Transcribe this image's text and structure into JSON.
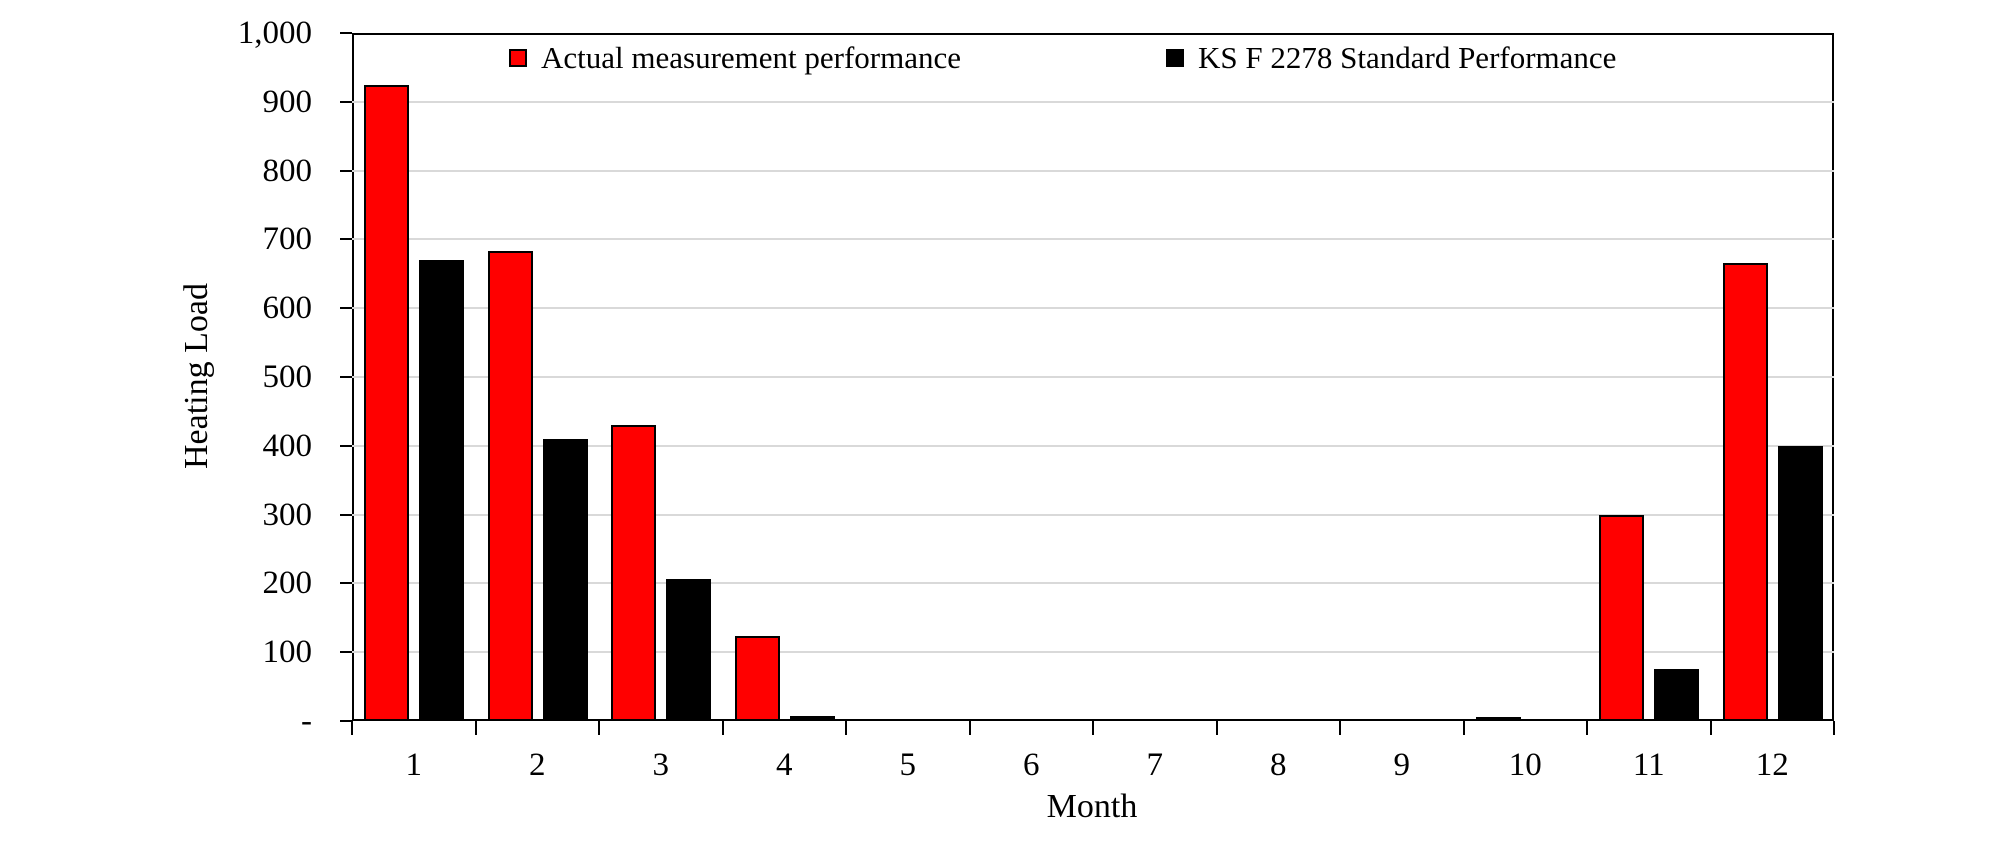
{
  "chart_data": {
    "type": "bar",
    "title": "",
    "xlabel": "Month",
    "ylabel": "Heating Load",
    "categories": [
      "1",
      "2",
      "3",
      "4",
      "5",
      "6",
      "7",
      "8",
      "9",
      "10",
      "11",
      "12"
    ],
    "series": [
      {
        "name": "Actual measurement performance",
        "color": "#ff0000",
        "values": [
          925,
          683,
          430,
          123,
          0,
          0,
          0,
          0,
          0,
          5,
          300,
          665
        ]
      },
      {
        "name": "KS F 2278 Standard Performance",
        "color": "#000000",
        "values": [
          670,
          410,
          207,
          7,
          0,
          0,
          0,
          0,
          0,
          0,
          75,
          400
        ]
      }
    ],
    "ylim": [
      0,
      1000
    ],
    "ytick_step": 100,
    "ytick_labels": [
      "1,000",
      "900",
      "800",
      "700",
      "600",
      "500",
      "400",
      "300",
      "200",
      "100",
      "-"
    ],
    "grid": true,
    "gridline_color": "#d9d9d9",
    "legend_position": "top-inside"
  }
}
